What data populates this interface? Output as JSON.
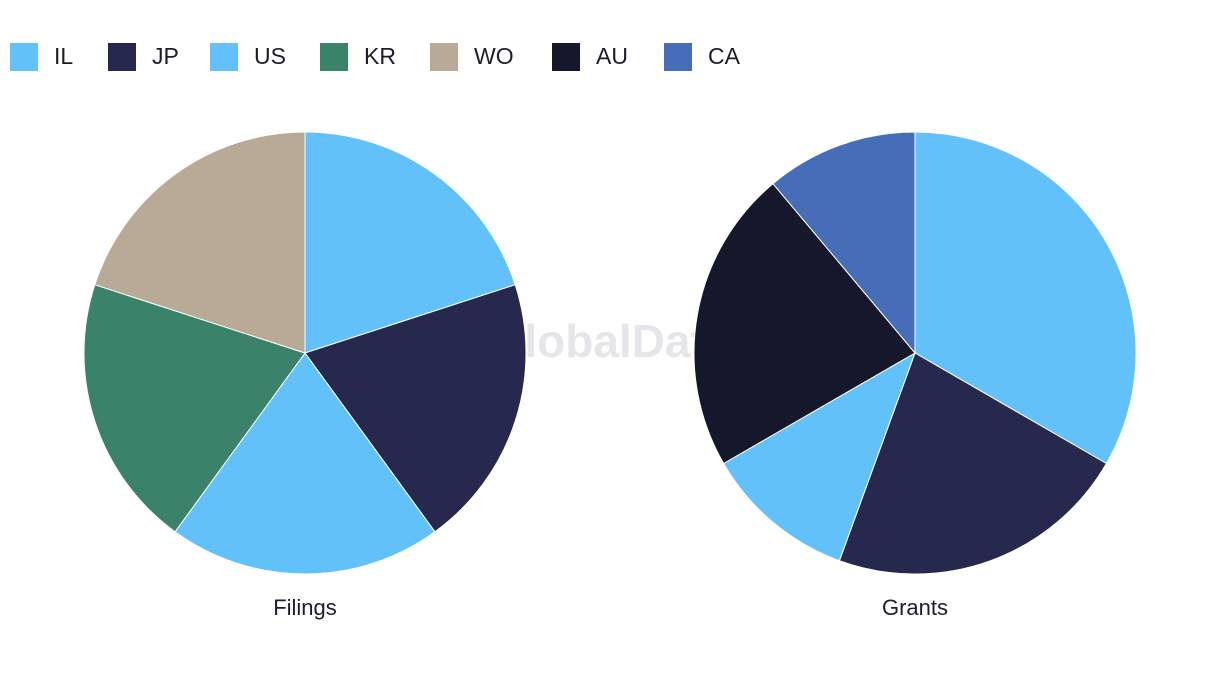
{
  "watermark": "GlobalData",
  "chart_data": [
    {
      "type": "pie",
      "title": "Filings",
      "categories": [
        "IL",
        "JP",
        "US",
        "KR",
        "WO"
      ],
      "values": [
        20,
        20,
        20,
        20,
        20
      ],
      "colors": [
        "#63c1f9",
        "#27284d",
        "#63c1f9",
        "#3a836a",
        "#b8aa96"
      ]
    },
    {
      "type": "pie",
      "title": "Grants",
      "categories": [
        "IL",
        "JP",
        "US",
        "AU",
        "CA"
      ],
      "values": [
        33.3,
        22.2,
        11.1,
        22.2,
        11.1
      ],
      "colors": [
        "#63c1f9",
        "#27284d",
        "#63c1f9",
        "#15172b",
        "#466eb8"
      ]
    }
  ]
}
